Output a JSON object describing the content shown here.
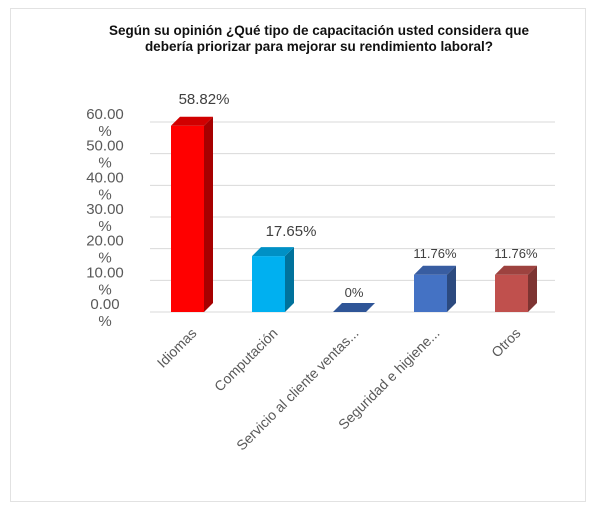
{
  "chart_data": {
    "type": "bar",
    "style": "3d-column",
    "title_lines": [
      "Según su opinión ¿Qué tipo de capacitación usted considera que",
      "debería priorizar para mejorar su rendimiento laboral?"
    ],
    "categories": [
      "Idiomas",
      "Computación",
      "Servicio al cliente ventas...",
      "Seguridad e higiene...",
      "Otros"
    ],
    "values": [
      58.82,
      17.65,
      0,
      11.76,
      11.76
    ],
    "data_labels": [
      "58.82%",
      "17.65%",
      "0%",
      "11.76%",
      "11.76%"
    ],
    "colors": [
      "#ff0000",
      "#00b0f0",
      "#2f5597",
      "#4472c4",
      "#c0504d"
    ],
    "y_ticks": [
      {
        "value": 60,
        "label": "60.00\n%"
      },
      {
        "value": 50,
        "label": "50.00\n%"
      },
      {
        "value": 40,
        "label": "40.00\n%"
      },
      {
        "value": 30,
        "label": "30.00\n%"
      },
      {
        "value": 20,
        "label": "20.00\n%"
      },
      {
        "value": 10,
        "label": "10.00\n%"
      },
      {
        "value": 0,
        "label": "0.00\n%"
      }
    ],
    "ylim": [
      0,
      60
    ],
    "grid": true,
    "legend": "none"
  }
}
